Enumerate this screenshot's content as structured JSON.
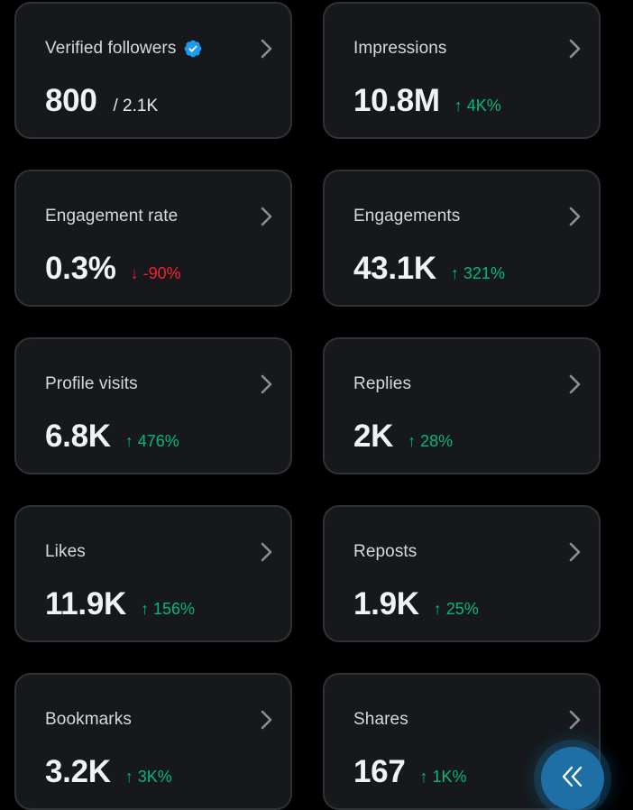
{
  "colors": {
    "background": "#000000",
    "card_bg": "#16181c",
    "card_border": "#2f3336",
    "positive": "#00ba7c",
    "negative": "#f4212e",
    "verified_badge": "#1d9bf0",
    "fab": "#1d6fa5"
  },
  "cards": [
    {
      "label": "Verified followers",
      "value": "800",
      "total": "/ 2.1K",
      "icon": "verified-badge-icon"
    },
    {
      "label": "Impressions",
      "value": "10.8M",
      "delta": "4K%",
      "direction": "up"
    },
    {
      "label": "Engagement rate",
      "value": "0.3%",
      "delta": "-90%",
      "direction": "down"
    },
    {
      "label": "Engagements",
      "value": "43.1K",
      "delta": "321%",
      "direction": "up"
    },
    {
      "label": "Profile visits",
      "value": "6.8K",
      "delta": "476%",
      "direction": "up"
    },
    {
      "label": "Replies",
      "value": "2K",
      "delta": "28%",
      "direction": "up"
    },
    {
      "label": "Likes",
      "value": "11.9K",
      "delta": "156%",
      "direction": "up"
    },
    {
      "label": "Reposts",
      "value": "1.9K",
      "delta": "25%",
      "direction": "up"
    },
    {
      "label": "Bookmarks",
      "value": "3.2K",
      "delta": "3K%",
      "direction": "up"
    },
    {
      "label": "Shares",
      "value": "167",
      "delta": "1K%",
      "direction": "up"
    }
  ],
  "arrows": {
    "up": "↑",
    "down": "↓"
  },
  "fab": {
    "icon": "double-chevron-left-icon"
  }
}
